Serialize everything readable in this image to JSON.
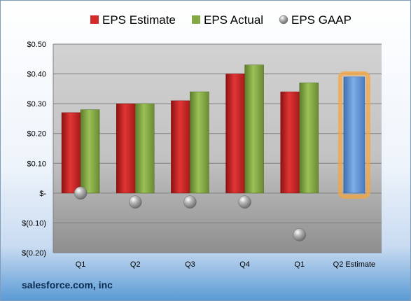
{
  "footer": "salesforce.com, inc",
  "colors": {
    "estimate": "#d42a2a",
    "actual": "#84a845",
    "gaap": "#a8a8a8",
    "highlight_bar": "#5b8ed0",
    "highlight_glow": "#f4a640"
  },
  "chart_data": {
    "type": "bar",
    "categories": [
      "Q1",
      "Q2",
      "Q3",
      "Q4",
      "Q1",
      "Q2 Estimate"
    ],
    "series": [
      {
        "name": "EPS Estimate",
        "marker": "bar",
        "values": [
          0.27,
          0.3,
          0.31,
          0.4,
          0.34,
          null
        ]
      },
      {
        "name": "EPS Actual",
        "marker": "bar",
        "values": [
          0.28,
          0.3,
          0.34,
          0.43,
          0.37,
          null
        ]
      },
      {
        "name": "EPS GAAP",
        "marker": "sphere",
        "values": [
          0.0,
          -0.03,
          -0.03,
          -0.03,
          -0.14,
          null
        ]
      }
    ],
    "highlight": {
      "category": "Q2 Estimate",
      "value": 0.39
    },
    "yticks": [
      0.5,
      0.4,
      0.3,
      0.2,
      0.1,
      0,
      -0.1,
      -0.2
    ],
    "ytick_labels": [
      "$0.50",
      "$0.40",
      "$0.30",
      "$0.20",
      "$0.10",
      "$-",
      "$(0.10)",
      "$(0.20)"
    ],
    "ylim": [
      -0.2,
      0.5
    ],
    "grid": true,
    "legend_position": "top"
  }
}
